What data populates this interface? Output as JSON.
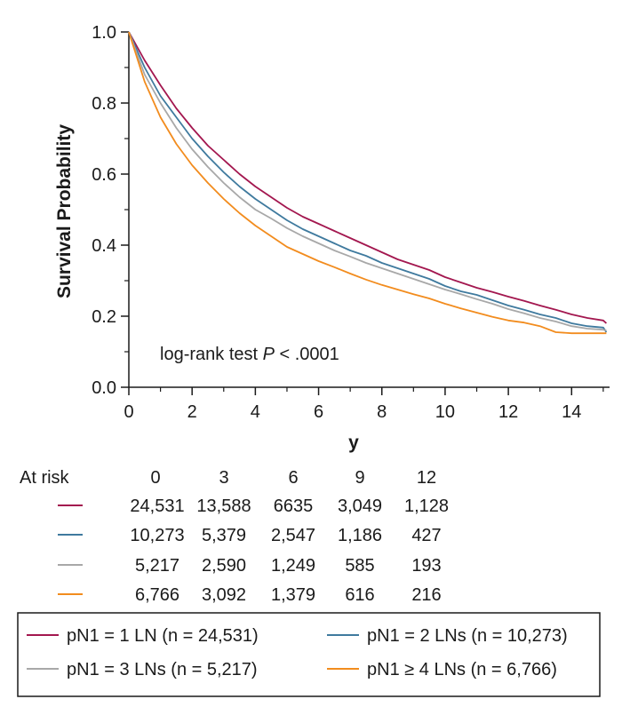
{
  "chart_data": {
    "type": "line",
    "title": "",
    "xlabel": "y",
    "ylabel": "Survival Probability",
    "xlim": [
      0,
      15.2
    ],
    "ylim": [
      0,
      1.0
    ],
    "x_ticks": [
      0,
      2,
      4,
      6,
      8,
      10,
      12,
      14
    ],
    "x_tick_labels": [
      "0",
      "2",
      "4",
      "6",
      "8",
      "10",
      "12",
      "14"
    ],
    "y_ticks": [
      0,
      0.2,
      0.4,
      0.6,
      0.8,
      1.0
    ],
    "y_tick_labels": [
      "0.0",
      "0.2",
      "0.4",
      "0.6",
      "0.8",
      "1.0"
    ],
    "y_minor_ticks": [
      0.1,
      0.3,
      0.5,
      0.7,
      0.9
    ],
    "grid": false,
    "annotation": {
      "prefix": "log-rank test ",
      "italic": "P",
      "suffix": " < .0001"
    },
    "series": [
      {
        "name": "pN1 = 1 LN (n = 24,531)",
        "color": "#a3174f",
        "x": [
          0,
          0.5,
          1,
          1.5,
          2,
          2.5,
          3,
          3.5,
          4,
          4.5,
          5,
          5.5,
          6,
          6.5,
          7,
          7.5,
          8,
          8.5,
          9,
          9.5,
          10,
          10.5,
          11,
          11.5,
          12,
          12.5,
          13,
          13.5,
          14,
          14.5,
          15,
          15.1
        ],
        "y": [
          1.0,
          0.92,
          0.85,
          0.785,
          0.73,
          0.68,
          0.64,
          0.6,
          0.565,
          0.535,
          0.505,
          0.48,
          0.46,
          0.44,
          0.42,
          0.4,
          0.38,
          0.36,
          0.345,
          0.33,
          0.31,
          0.295,
          0.28,
          0.268,
          0.255,
          0.243,
          0.23,
          0.218,
          0.205,
          0.195,
          0.188,
          0.18
        ]
      },
      {
        "name": "pN1 = 2 LNs (n = 10,273)",
        "color": "#3f7a9e",
        "x": [
          0,
          0.5,
          1,
          1.5,
          2,
          2.5,
          3,
          3.5,
          4,
          4.5,
          5,
          5.5,
          6,
          6.5,
          7,
          7.5,
          8,
          8.5,
          9,
          9.5,
          10,
          10.5,
          11,
          11.5,
          12,
          12.5,
          13,
          13.5,
          14,
          14.5,
          15,
          15.1
        ],
        "y": [
          1.0,
          0.9,
          0.82,
          0.76,
          0.7,
          0.65,
          0.605,
          0.565,
          0.53,
          0.5,
          0.47,
          0.445,
          0.425,
          0.405,
          0.385,
          0.37,
          0.35,
          0.335,
          0.32,
          0.305,
          0.285,
          0.27,
          0.26,
          0.245,
          0.23,
          0.218,
          0.205,
          0.195,
          0.18,
          0.172,
          0.168,
          0.155
        ]
      },
      {
        "name": "pN1 = 3 LNs (n = 5,217)",
        "color": "#a8a8a8",
        "x": [
          0,
          0.5,
          1,
          1.5,
          2,
          2.5,
          3,
          3.5,
          4,
          4.5,
          5,
          5.5,
          6,
          6.5,
          7,
          7.5,
          8,
          8.5,
          9,
          9.5,
          10,
          10.5,
          11,
          11.5,
          12,
          12.5,
          13,
          13.5,
          14,
          14.5,
          15,
          15.1
        ],
        "y": [
          1.0,
          0.88,
          0.8,
          0.73,
          0.67,
          0.62,
          0.575,
          0.535,
          0.5,
          0.475,
          0.448,
          0.425,
          0.405,
          0.385,
          0.368,
          0.35,
          0.335,
          0.32,
          0.305,
          0.29,
          0.275,
          0.262,
          0.248,
          0.235,
          0.22,
          0.208,
          0.195,
          0.185,
          0.172,
          0.165,
          0.162,
          0.16
        ]
      },
      {
        "name": "pN1 ≥ 4 LNs (n = 6,766)",
        "color": "#f28c1e",
        "x": [
          0,
          0.5,
          1,
          1.5,
          2,
          2.5,
          3,
          3.5,
          4,
          4.5,
          5,
          5.5,
          6,
          6.5,
          7,
          7.5,
          8,
          8.5,
          9,
          9.5,
          10,
          10.5,
          11,
          11.5,
          12,
          12.5,
          13,
          13.5,
          14,
          14.5,
          15,
          15.1
        ],
        "y": [
          1.0,
          0.86,
          0.76,
          0.685,
          0.625,
          0.575,
          0.53,
          0.49,
          0.455,
          0.425,
          0.395,
          0.375,
          0.355,
          0.338,
          0.32,
          0.303,
          0.288,
          0.275,
          0.262,
          0.25,
          0.235,
          0.222,
          0.21,
          0.198,
          0.188,
          0.182,
          0.172,
          0.155,
          0.152,
          0.152,
          0.152,
          0.152
        ]
      }
    ],
    "at_risk": {
      "label": "At risk",
      "times": [
        "0",
        "3",
        "6",
        "9",
        "12"
      ],
      "rows": [
        {
          "color": "#a3174f",
          "values": [
            "24,531",
            "13,588",
            "6635",
            "3,049",
            "1,128"
          ]
        },
        {
          "color": "#3f7a9e",
          "values": [
            "10,273",
            "5,379",
            "2,547",
            "1,186",
            "427"
          ]
        },
        {
          "color": "#a8a8a8",
          "values": [
            "5,217",
            "2,590",
            "1,249",
            "585",
            "193"
          ]
        },
        {
          "color": "#f28c1e",
          "values": [
            "6,766",
            "3,092",
            "1,379",
            "616",
            "216"
          ]
        }
      ]
    },
    "legend_position": "bottom"
  }
}
